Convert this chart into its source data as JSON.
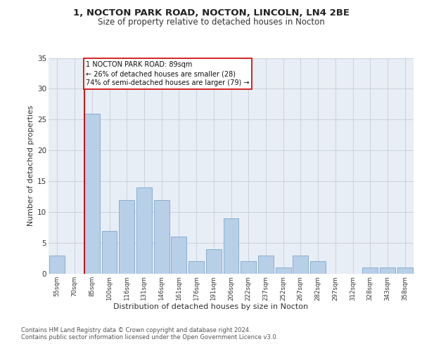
{
  "title1": "1, NOCTON PARK ROAD, NOCTON, LINCOLN, LN4 2BE",
  "title2": "Size of property relative to detached houses in Nocton",
  "xlabel": "Distribution of detached houses by size in Nocton",
  "ylabel": "Number of detached properties",
  "bin_labels": [
    "55sqm",
    "70sqm",
    "85sqm",
    "100sqm",
    "116sqm",
    "131sqm",
    "146sqm",
    "161sqm",
    "176sqm",
    "191sqm",
    "206sqm",
    "222sqm",
    "237sqm",
    "252sqm",
    "267sqm",
    "282sqm",
    "297sqm",
    "312sqm",
    "328sqm",
    "343sqm",
    "358sqm"
  ],
  "values": [
    3,
    0,
    26,
    7,
    12,
    14,
    12,
    6,
    2,
    4,
    9,
    2,
    3,
    1,
    3,
    2,
    0,
    0,
    1,
    1,
    1
  ],
  "bar_color": "#b8cfe8",
  "bar_edge_color": "#7fa8cc",
  "red_line_index": 2,
  "red_line_color": "#cc0000",
  "annotation_text": "1 NOCTON PARK ROAD: 89sqm\n← 26% of detached houses are smaller (28)\n74% of semi-detached houses are larger (79) →",
  "annotation_box_color": "#ffffff",
  "annotation_border_color": "#cc0000",
  "ylim": [
    0,
    35
  ],
  "yticks": [
    0,
    5,
    10,
    15,
    20,
    25,
    30,
    35
  ],
  "bg_color": "#e8eef5",
  "footer1": "Contains HM Land Registry data © Crown copyright and database right 2024.",
  "footer2": "Contains public sector information licensed under the Open Government Licence v3.0."
}
